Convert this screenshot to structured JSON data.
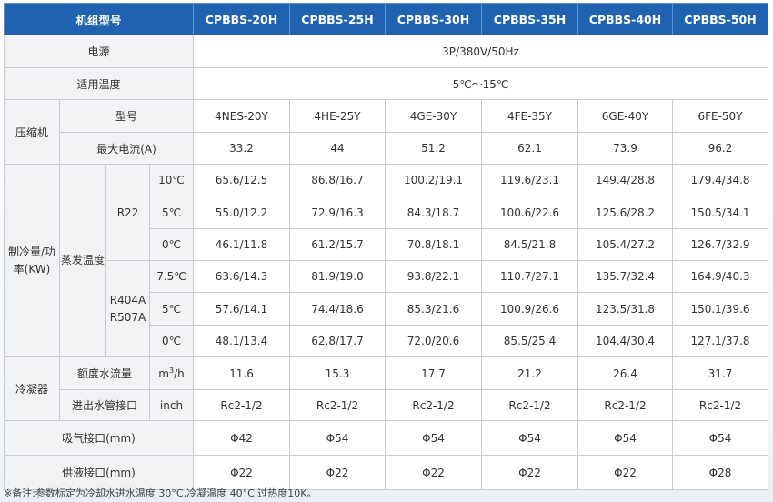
{
  "header": {
    "label": "机组型号",
    "models": [
      "CPBBS-20H",
      "CPBBS-25H",
      "CPBBS-30H",
      "CPBBS-35H",
      "CPBBS-40H",
      "CPBBS-50H"
    ]
  },
  "power": {
    "label": "电源",
    "value": "3P/380V/50Hz"
  },
  "temp_range": {
    "label": "适用温度",
    "value": "5℃～15℃"
  },
  "compressor": {
    "label": "压缩机",
    "model_label": "型号",
    "models": [
      "4NES-20Y",
      "4HE-25Y",
      "4GE-30Y",
      "4FE-35Y",
      "6GE-40Y",
      "6FE-50Y"
    ],
    "current_label": "最大电流(A)",
    "currents": [
      "33.2",
      "44",
      "51.2",
      "62.1",
      "73.9",
      "96.2"
    ]
  },
  "cooling": {
    "label": "制冷量/功率(KW)",
    "evap_label": "蒸发温度",
    "r22": {
      "label": "R22",
      "rows": [
        {
          "temp": "10℃",
          "values": [
            "65.6/12.5",
            "86.8/16.7",
            "100.2/19.1",
            "119.6/23.1",
            "149.4/28.8",
            "179.4/34.8"
          ]
        },
        {
          "temp": "5℃",
          "values": [
            "55.0/12.2",
            "72.9/16.3",
            "84.3/18.7",
            "100.6/22.6",
            "125.6/28.2",
            "150.5/34.1"
          ]
        },
        {
          "temp": "0℃",
          "values": [
            "46.1/11.8",
            "61.2/15.7",
            "70.8/18.1",
            "84.5/21.8",
            "105.4/27.2",
            "126.7/32.9"
          ]
        }
      ]
    },
    "r404": {
      "label": "R404A R507A",
      "rows": [
        {
          "temp": "7.5℃",
          "values": [
            "63.6/14.3",
            "81.9/19.0",
            "93.8/22.1",
            "110.7/27.1",
            "135.7/32.4",
            "164.9/40.3"
          ]
        },
        {
          "temp": "5℃",
          "values": [
            "57.6/14.1",
            "74.4/18.6",
            "85.3/21.6",
            "100.9/26.6",
            "123.5/31.8",
            "150.1/39.6"
          ]
        },
        {
          "temp": "0℃",
          "values": [
            "48.1/13.4",
            "62.8/17.7",
            "72.0/20.6",
            "85.5/25.4",
            "104.4/30.4",
            "127.1/37.8"
          ]
        }
      ]
    }
  },
  "condenser": {
    "label": "冷凝器",
    "flow_label": "额度水流量",
    "flow_unit_base": "m",
    "flow_unit_sup": "3",
    "flow_unit_tail": "/h",
    "flows": [
      "11.6",
      "15.3",
      "17.7",
      "21.2",
      "26.4",
      "31.7"
    ],
    "pipe_label": "进出水管接口",
    "pipe_unit": "inch",
    "pipes": [
      "Rc2-1/2",
      "Rc2-1/2",
      "Rc2-1/2",
      "Rc2-1/2",
      "Rc2-1/2",
      "Rc2-1/2"
    ]
  },
  "suction": {
    "label": "吸气接口(mm)",
    "values": [
      "Φ42",
      "Φ54",
      "Φ54",
      "Φ54",
      "Φ54",
      "Φ54"
    ]
  },
  "liquid": {
    "label": "供液接口(mm)",
    "values": [
      "Φ22",
      "Φ22",
      "Φ22",
      "Φ22",
      "Φ22",
      "Φ28"
    ]
  },
  "note": "※备注:参数标定为冷却水进水温度 30°C,冷凝温度 40°C,过热度10K。"
}
